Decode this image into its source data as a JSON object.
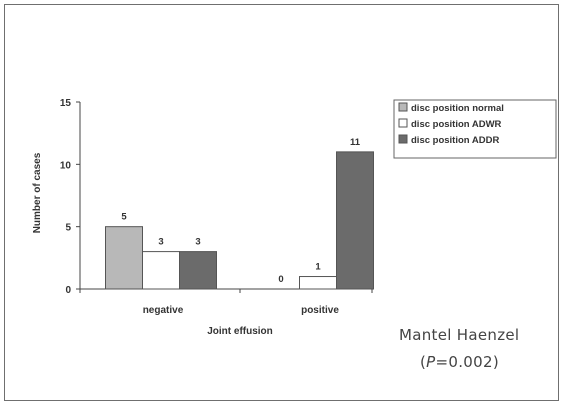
{
  "chart_data": {
    "type": "bar",
    "categories": [
      "negative",
      "positive"
    ],
    "series": [
      {
        "name": "disc position normal",
        "values": [
          5,
          0
        ],
        "color": "#b8b8b8"
      },
      {
        "name": "disc position ADWR",
        "values": [
          3,
          1
        ],
        "color": "#ffffff"
      },
      {
        "name": "disc position ADDR",
        "values": [
          3,
          11
        ],
        "color": "#6b6b6b"
      }
    ],
    "data_labels": [
      [
        "5",
        "3",
        "3"
      ],
      [
        "0",
        "1",
        "11"
      ]
    ],
    "xlabel": "Joint effusion",
    "ylabel": "Number of cases",
    "ylim": [
      0,
      15
    ],
    "yticks": [
      0,
      5,
      10,
      15
    ],
    "grid": false,
    "legend_position": "top-right"
  },
  "annotation": {
    "line1": "Mantel Haenzel",
    "line2_prefix": "(",
    "line2_var": "P",
    "line2_rest": "=0.002)"
  }
}
